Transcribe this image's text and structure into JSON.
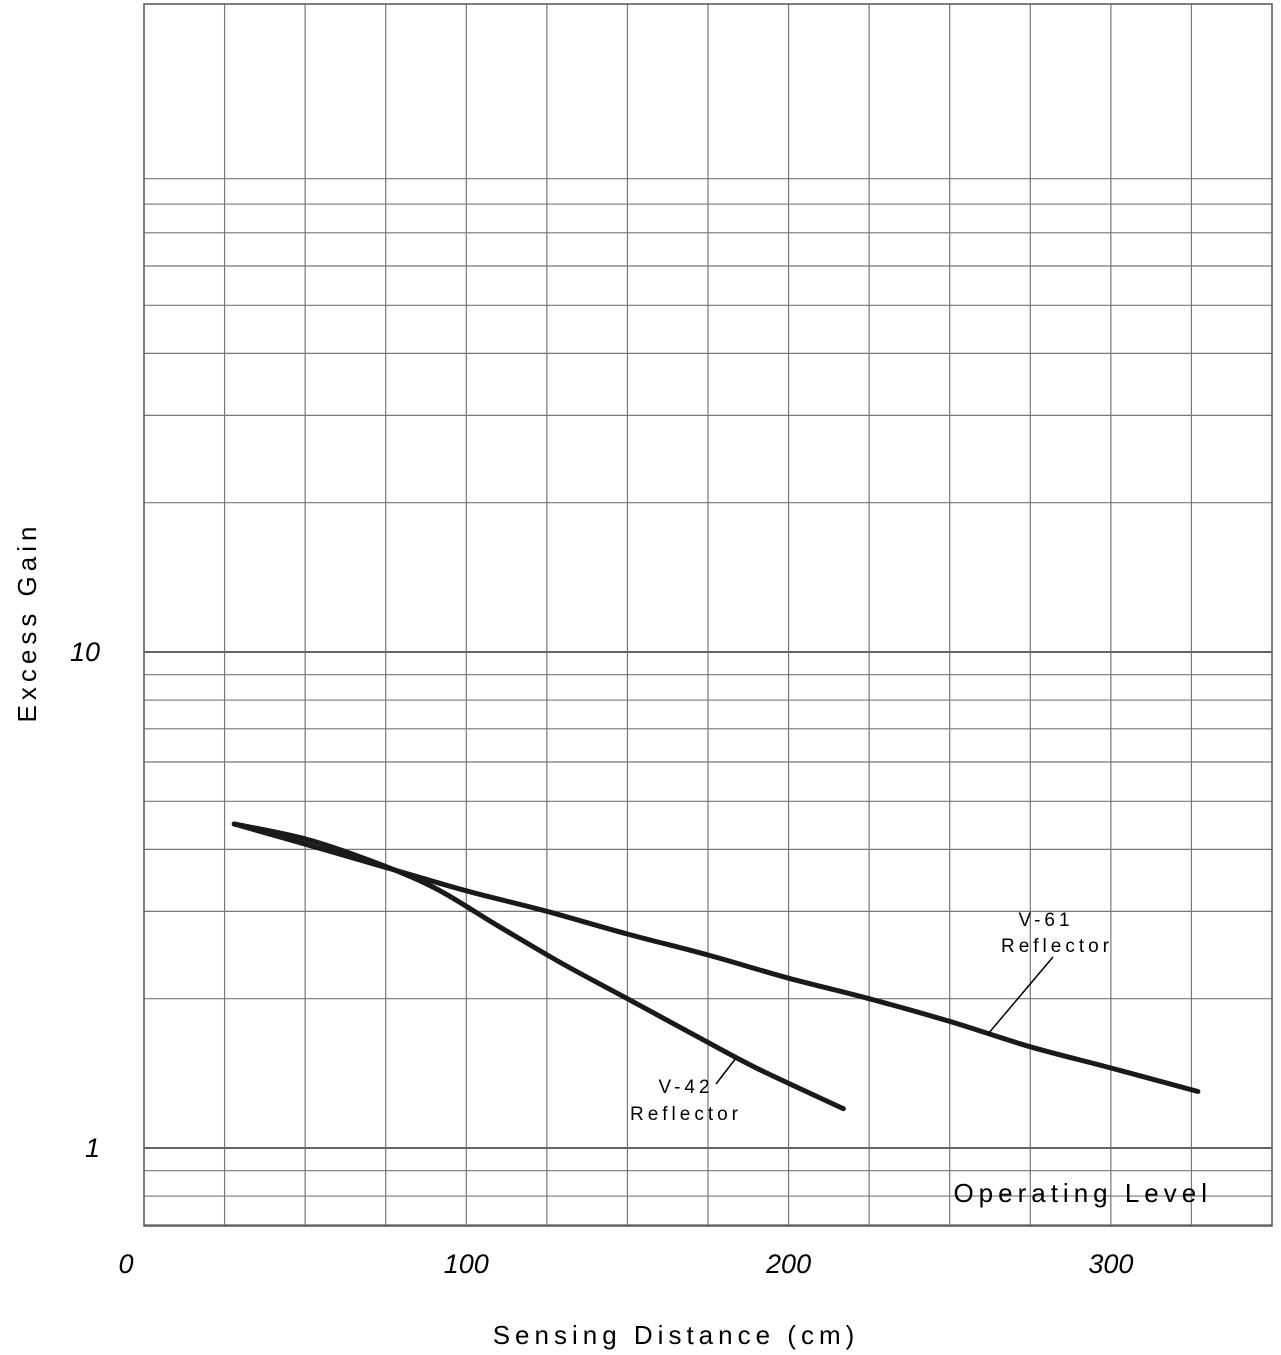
{
  "chart_data": {
    "type": "line",
    "title": "",
    "xlabel": "Sensing Distance (cm)",
    "ylabel": "Excess Gain",
    "x_scale": "linear",
    "y_scale": "log",
    "xlim": [
      0,
      350
    ],
    "ylim": [
      0.6,
      100
    ],
    "x_ticks": [
      0,
      100,
      200,
      300
    ],
    "x_tick_labels": [
      "0",
      "100",
      "200",
      "300"
    ],
    "y_ticks": [
      1,
      10
    ],
    "y_tick_labels": [
      "1",
      "10"
    ],
    "grid": true,
    "x_grid_step": 25,
    "series": [
      {
        "name": "V-61 Reflector",
        "label_lines": [
          "V-61",
          "Reflector"
        ],
        "x": [
          28,
          50,
          80,
          100,
          125,
          150,
          175,
          200,
          225,
          250,
          275,
          300,
          327
        ],
        "y": [
          4.5,
          4.1,
          3.6,
          3.3,
          3.0,
          2.7,
          2.45,
          2.2,
          2.0,
          1.8,
          1.6,
          1.45,
          1.3
        ]
      },
      {
        "name": "V-42 Reflector",
        "label_lines": [
          "V-42",
          "Reflector"
        ],
        "x": [
          28,
          50,
          70,
          90,
          110,
          130,
          150,
          170,
          190,
          217
        ],
        "y": [
          4.5,
          4.2,
          3.8,
          3.35,
          2.8,
          2.35,
          2.0,
          1.7,
          1.45,
          1.2
        ]
      }
    ],
    "annotations": [
      {
        "text": "Operating Level",
        "y": 1
      }
    ]
  }
}
